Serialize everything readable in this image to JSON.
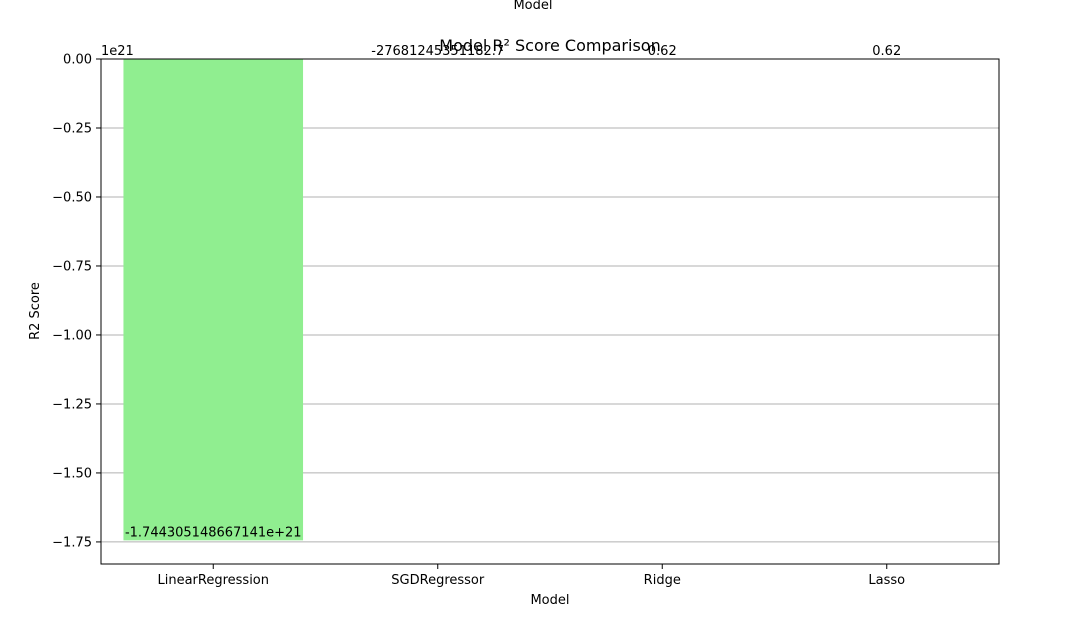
{
  "chart_data": {
    "type": "bar",
    "title": "Model R² Score Comparison",
    "top_label": "Model",
    "xlabel": "Model",
    "ylabel": "R2 Score",
    "y_offset_label": "1e21",
    "y_scale": 1e+21,
    "categories": [
      "LinearRegression",
      "SGDRegressor",
      "Ridge",
      "Lasso"
    ],
    "values": [
      -1.744305148667141e+21,
      -27681245351182.7,
      0.62,
      0.62
    ],
    "value_labels": [
      "-1.744305148667141e+21",
      "-27681245351182.7",
      "0.62",
      "0.62"
    ],
    "ylim": [
      -1.83,
      0.0
    ],
    "yticks": [
      0.0,
      -0.25,
      -0.5,
      -0.75,
      -1.0,
      -1.25,
      -1.5,
      -1.75
    ],
    "ytick_labels": [
      "0.00",
      "−0.25",
      "−0.50",
      "−0.75",
      "−1.00",
      "−1.25",
      "−1.50",
      "−1.75"
    ],
    "grid": "horizontal",
    "bar_color": "#90ee90"
  }
}
